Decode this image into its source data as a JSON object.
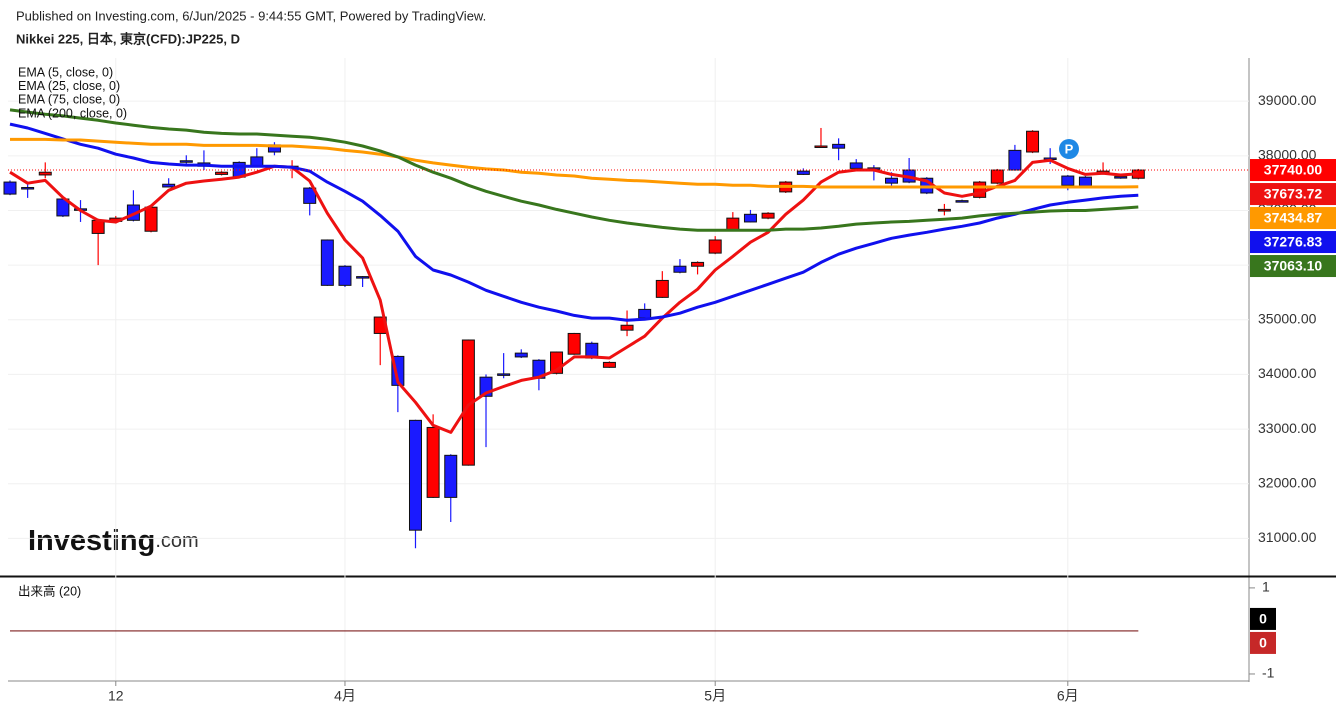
{
  "header": {
    "published": "Published on Investing.com, 6/Jun/2025 - 9:44:55 GMT, Powered by TradingView."
  },
  "logo": {
    "brand": "Investing",
    "suffix": ".com"
  },
  "marker": "P",
  "chart_data": [
    {
      "type": "candlestick",
      "title": "Nikkei 225, 日本, 東京(CFD):JP225, D",
      "categories": [
        null,
        null,
        null,
        null,
        null,
        null,
        "12",
        null,
        null,
        null,
        null,
        null,
        null,
        null,
        null,
        null,
        null,
        null,
        null,
        "4月",
        null,
        null,
        null,
        null,
        null,
        null,
        null,
        null,
        null,
        null,
        null,
        null,
        null,
        null,
        null,
        null,
        null,
        null,
        null,
        null,
        "5月",
        null,
        null,
        null,
        null,
        null,
        null,
        null,
        null,
        null,
        null,
        null,
        null,
        null,
        null,
        null,
        null,
        null,
        null,
        null,
        "6月",
        null,
        null,
        null,
        null
      ],
      "open": [
        37520,
        37420,
        37650,
        37210,
        37030,
        36580,
        36800,
        37100,
        36620,
        37480,
        37910,
        37870,
        37660,
        37880,
        37980,
        38200,
        37780,
        37410,
        36460,
        35980,
        35790,
        34750,
        34330,
        33160,
        31750,
        32520,
        32340,
        33950,
        34010,
        34390,
        34260,
        34020,
        34370,
        34570,
        34130,
        34810,
        35190,
        35410,
        35980,
        35980,
        36220,
        36640,
        36930,
        36860,
        37340,
        37720,
        38170,
        38210,
        37870,
        37780,
        37590,
        37740,
        37590,
        36990,
        37180,
        37240,
        37500,
        38100,
        38070,
        37960,
        37630,
        37610,
        37680,
        37620,
        37590
      ],
      "high": [
        37550,
        37520,
        37880,
        37230,
        37190,
        36850,
        36900,
        37370,
        37110,
        37590,
        38010,
        38100,
        37720,
        37900,
        38140,
        38250,
        37920,
        37430,
        36470,
        36000,
        35800,
        35060,
        34350,
        33170,
        33270,
        32540,
        34640,
        34000,
        34390,
        34460,
        34280,
        34420,
        34760,
        34600,
        34240,
        35170,
        35300,
        35890,
        36110,
        36070,
        36530,
        36970,
        37010,
        36970,
        37540,
        37770,
        38510,
        38320,
        37940,
        37830,
        37700,
        37960,
        37610,
        37120,
        37200,
        37540,
        37760,
        38200,
        38470,
        38140,
        37650,
        37630,
        37880,
        37640,
        37760
      ],
      "low": [
        37280,
        37230,
        37590,
        36880,
        36790,
        36000,
        36760,
        36800,
        36600,
        37420,
        37810,
        37740,
        37640,
        37600,
        37800,
        38010,
        37590,
        36910,
        35620,
        35600,
        35600,
        34170,
        33310,
        30820,
        31740,
        31300,
        32330,
        32670,
        33930,
        34300,
        33710,
        34000,
        34360,
        34280,
        34120,
        34700,
        35010,
        35400,
        35850,
        35830,
        36200,
        36620,
        36780,
        36840,
        37320,
        37650,
        38160,
        37920,
        37760,
        37550,
        37450,
        37500,
        37300,
        36910,
        37150,
        37220,
        37480,
        37730,
        38050,
        37850,
        37370,
        37430,
        37660,
        37580,
        37570
      ],
      "close": [
        37300,
        37400,
        37700,
        36900,
        37010,
        36820,
        36860,
        36820,
        37060,
        37430,
        37900,
        37810,
        37700,
        37610,
        37810,
        38070,
        37810,
        37130,
        35630,
        35630,
        35770,
        35050,
        33800,
        31150,
        33030,
        31750,
        34630,
        33600,
        34000,
        34320,
        33930,
        34410,
        34750,
        34300,
        34220,
        34900,
        35030,
        35720,
        35870,
        36050,
        36460,
        36860,
        36790,
        36950,
        37520,
        37660,
        38180,
        38140,
        37770,
        37770,
        37500,
        37520,
        37320,
        37020,
        37170,
        37520,
        37740,
        37740,
        38450,
        37940,
        37460,
        37450,
        37720,
        37600,
        37740
      ],
      "up_color": "#ff0000",
      "down_color": "#1a1aff",
      "current_price": {
        "value": 37740,
        "label": "37740.00"
      },
      "series": [
        {
          "name": "EMA (5, close, 0)",
          "color": "#ee1111",
          "values": [
            37700,
            37500,
            37550,
            37240,
            37000,
            36820,
            36790,
            36930,
            37080,
            37370,
            37500,
            37540,
            37570,
            37610,
            37700,
            37810,
            37790,
            37540,
            36950,
            36460,
            36130,
            35360,
            33860,
            33490,
            33070,
            32940,
            33440,
            33660,
            33780,
            33890,
            33950,
            34080,
            34320,
            34320,
            34300,
            34500,
            34700,
            35030,
            35320,
            35560,
            35910,
            36160,
            36420,
            36600,
            36930,
            37190,
            37520,
            37700,
            37740,
            37740,
            37660,
            37610,
            37540,
            37320,
            37260,
            37320,
            37440,
            37550,
            37880,
            37920,
            37770,
            37660,
            37680,
            37650,
            37673.72
          ]
        },
        {
          "name": "EMA (25, close, 0)",
          "color": "#1010ee",
          "values": [
            38580,
            38510,
            38410,
            38310,
            38210,
            38140,
            38030,
            37960,
            37880,
            37850,
            37830,
            37830,
            37810,
            37810,
            37810,
            37810,
            37790,
            37720,
            37520,
            37350,
            37170,
            36910,
            36620,
            36160,
            35910,
            35820,
            35690,
            35540,
            35430,
            35320,
            35230,
            35160,
            35080,
            35030,
            35030,
            34990,
            35010,
            35050,
            35120,
            35230,
            35320,
            35430,
            35540,
            35650,
            35760,
            35870,
            36050,
            36200,
            36310,
            36400,
            36490,
            36550,
            36600,
            36660,
            36710,
            36770,
            36860,
            36930,
            37020,
            37100,
            37150,
            37190,
            37230,
            37260,
            37276.83
          ]
        },
        {
          "name": "EMA (75, close, 0)",
          "color": "#ff9900",
          "values": [
            38300,
            38300,
            38300,
            38290,
            38290,
            38270,
            38250,
            38230,
            38210,
            38210,
            38210,
            38190,
            38190,
            38190,
            38190,
            38180,
            38180,
            38160,
            38140,
            38100,
            38070,
            38030,
            37980,
            37920,
            37870,
            37830,
            37790,
            37760,
            37740,
            37700,
            37680,
            37650,
            37630,
            37590,
            37570,
            37550,
            37540,
            37520,
            37500,
            37480,
            37480,
            37460,
            37460,
            37440,
            37440,
            37440,
            37430,
            37430,
            37430,
            37430,
            37430,
            37430,
            37430,
            37430,
            37430,
            37430,
            37430,
            37430,
            37430,
            37430,
            37430,
            37430,
            37430,
            37430,
            37434.87
          ]
        },
        {
          "name": "EMA (200, close, 0)",
          "color": "#38761d",
          "values": [
            38840,
            38800,
            38760,
            38730,
            38690,
            38650,
            38600,
            38560,
            38520,
            38490,
            38470,
            38430,
            38410,
            38400,
            38400,
            38380,
            38360,
            38340,
            38300,
            38250,
            38180,
            38090,
            37980,
            37830,
            37700,
            37590,
            37460,
            37350,
            37260,
            37170,
            37100,
            37020,
            36950,
            36880,
            36820,
            36770,
            36730,
            36690,
            36660,
            36640,
            36640,
            36640,
            36640,
            36640,
            36660,
            36660,
            36680,
            36710,
            36750,
            36770,
            36790,
            36800,
            36820,
            36840,
            36860,
            36900,
            36930,
            36950,
            36970,
            36990,
            37000,
            37000,
            37020,
            37040,
            37063.1
          ],
          "value_labels": [
            null,
            null,
            null,
            null,
            null,
            null,
            null,
            null,
            null,
            null,
            null,
            null,
            null,
            null,
            null,
            null,
            null,
            null,
            null,
            null,
            null,
            null,
            null,
            null,
            null,
            null,
            null,
            null,
            null,
            null,
            null,
            null,
            null,
            null,
            null,
            null,
            null,
            null,
            null,
            null,
            null,
            null,
            null,
            null,
            null,
            null,
            null,
            null,
            null,
            null,
            null,
            null,
            null,
            null,
            null,
            null,
            null,
            null,
            null,
            null,
            null,
            null,
            null,
            null,
            "37063.10"
          ]
        }
      ],
      "ylim": [
        30330,
        39790
      ],
      "yticks": [
        {
          "value": 39000,
          "label": "39000.00"
        },
        {
          "value": 38000,
          "label": "38000.00"
        },
        {
          "value": 37000,
          "label": "37000.00"
        },
        {
          "value": 36000,
          "label": "36000.00"
        },
        {
          "value": 35000,
          "label": "35000.00"
        },
        {
          "value": 34000,
          "label": "34000.00"
        },
        {
          "value": 33000,
          "label": "33000.00"
        },
        {
          "value": 32000,
          "label": "32000.00"
        },
        {
          "value": 31000,
          "label": "31000.00"
        }
      ],
      "grid": true
    },
    {
      "type": "line",
      "title": "出来高 (20)",
      "series": [
        {
          "color": "#000000",
          "values": [
            0,
            0,
            0,
            0,
            0,
            0,
            0,
            0,
            0,
            0,
            0,
            0,
            0,
            0,
            0,
            0,
            0,
            0,
            0,
            0,
            0,
            0,
            0,
            0,
            0,
            0,
            0,
            0,
            0,
            0,
            0,
            0,
            0,
            0,
            0,
            0,
            0,
            0,
            0,
            0,
            0,
            0,
            0,
            0,
            0,
            0,
            0,
            0,
            0,
            0,
            0,
            0,
            0,
            0,
            0,
            0,
            0,
            0,
            0,
            0,
            0,
            0,
            0,
            0,
            0
          ]
        },
        {
          "color": "#c62828",
          "values": [
            0,
            0,
            0,
            0,
            0,
            0,
            0,
            0,
            0,
            0,
            0,
            0,
            0,
            0,
            0,
            0,
            0,
            0,
            0,
            0,
            0,
            0,
            0,
            0,
            0,
            0,
            0,
            0,
            0,
            0,
            0,
            0,
            0,
            0,
            0,
            0,
            0,
            0,
            0,
            0,
            0,
            0,
            0,
            0,
            0,
            0,
            0,
            0,
            0,
            0,
            0,
            0,
            0,
            0,
            0,
            0,
            0,
            0,
            0,
            0,
            0,
            0,
            0,
            0,
            0
          ]
        }
      ],
      "ylim": [
        -1.14,
        1.23
      ],
      "yticks": [
        1,
        -1
      ]
    }
  ]
}
